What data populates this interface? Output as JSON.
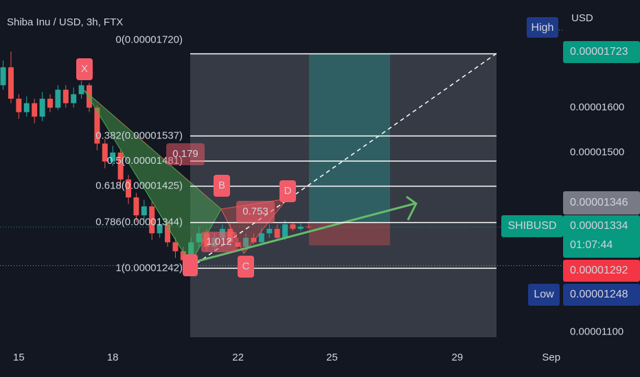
{
  "chart_data": {
    "type": "candlestick",
    "title": "Shiba Inu / USD, 3h, FTX",
    "currency": "USD",
    "x": [
      14.5,
      14.75,
      15,
      15.25,
      15.5,
      15.75,
      16,
      16.25,
      16.5,
      16.75,
      17,
      17.25,
      17.5,
      17.75,
      18,
      18.25,
      18.5,
      18.75,
      19,
      19.25,
      19.5,
      19.75,
      20,
      20.25,
      20.5,
      20.75,
      21,
      21.25,
      21.5,
      21.75,
      22,
      22.25,
      22.5,
      22.75,
      23,
      23.25,
      23.5,
      23.75,
      24,
      24.25
    ],
    "open": [
      1.65e-05,
      1.69e-05,
      1.62e-05,
      1.59e-05,
      1.61e-05,
      1.58e-05,
      1.62e-05,
      1.6e-05,
      1.64e-05,
      1.61e-05,
      1.63e-05,
      1.65e-05,
      1.6e-05,
      1.52e-05,
      1.48e-05,
      1.5e-05,
      1.44e-05,
      1.4e-05,
      1.36e-05,
      1.38e-05,
      1.32e-05,
      1.34e-05,
      1.3e-05,
      1.28e-05,
      1.26e-05,
      1.3e-05,
      1.32e-05,
      1.29e-05,
      1.31e-05,
      1.33e-05,
      1.3e-05,
      1.29e-05,
      1.31e-05,
      1.3e-05,
      1.32e-05,
      1.33e-05,
      1.31e-05,
      1.34e-05,
      1.33e-05,
      1.335e-05
    ],
    "high": [
      1.705e-05,
      1.725e-05,
      1.63e-05,
      1.625e-05,
      1.62e-05,
      1.635e-05,
      1.63e-05,
      1.65e-05,
      1.65e-05,
      1.645e-05,
      1.66e-05,
      1.655e-05,
      1.605e-05,
      1.53e-05,
      1.515e-05,
      1.505e-05,
      1.45e-05,
      1.41e-05,
      1.395e-05,
      1.39e-05,
      1.355e-05,
      1.35e-05,
      1.31e-05,
      1.29e-05,
      1.31e-05,
      1.335e-05,
      1.33e-05,
      1.32e-05,
      1.34e-05,
      1.34e-05,
      1.31e-05,
      1.32e-05,
      1.32e-05,
      1.33e-05,
      1.34e-05,
      1.34e-05,
      1.35e-05,
      1.345e-05,
      1.342e-05,
      1.346e-05
    ],
    "low": [
      1.64e-05,
      1.61e-05,
      1.575e-05,
      1.58e-05,
      1.565e-05,
      1.57e-05,
      1.59e-05,
      1.595e-05,
      1.6e-05,
      1.6e-05,
      1.62e-05,
      1.59e-05,
      1.505e-05,
      1.465e-05,
      1.47e-05,
      1.425e-05,
      1.385e-05,
      1.345e-05,
      1.35e-05,
      1.305e-05,
      1.31e-05,
      1.29e-05,
      1.265e-05,
      1.242e-05,
      1.25e-05,
      1.29e-05,
      1.28e-05,
      1.28e-05,
      1.3e-05,
      1.29e-05,
      1.28e-05,
      1.285e-05,
      1.295e-05,
      1.295e-05,
      1.31e-05,
      1.305e-05,
      1.305e-05,
      1.325e-05,
      1.325e-05,
      1.33e-05
    ],
    "close": [
      1.69e-05,
      1.62e-05,
      1.59e-05,
      1.61e-05,
      1.58e-05,
      1.62e-05,
      1.6e-05,
      1.64e-05,
      1.61e-05,
      1.63e-05,
      1.65e-05,
      1.6e-05,
      1.52e-05,
      1.48e-05,
      1.5e-05,
      1.44e-05,
      1.4e-05,
      1.36e-05,
      1.38e-05,
      1.32e-05,
      1.34e-05,
      1.3e-05,
      1.28e-05,
      1.26e-05,
      1.3e-05,
      1.32e-05,
      1.29e-05,
      1.31e-05,
      1.33e-05,
      1.3e-05,
      1.29e-05,
      1.31e-05,
      1.3e-05,
      1.32e-05,
      1.33e-05,
      1.31e-05,
      1.34e-05,
      1.33e-05,
      1.335e-05,
      1.334e-05
    ],
    "up_color": "#26a69a",
    "down_color": "#ef5350",
    "xlim": [
      14.4,
      32.4
    ],
    "xticks": [
      15,
      18,
      22,
      25,
      29,
      {
        "value": 32,
        "label": "Sep"
      }
    ],
    "ylim": [
      1.07e-05,
      1.84e-05
    ],
    "yticks": [
      {
        "value": 1.1e-05,
        "label": "0.00001100"
      },
      {
        "value": 1.5e-05,
        "label": "0.00001500"
      },
      {
        "value": 1.6e-05,
        "label": "0.00001600"
      }
    ],
    "grid": false,
    "fib_levels": [
      {
        "label": "0(0.00001720)",
        "value": 1.72e-05
      },
      {
        "label": "0.382(0.00001537)",
        "value": 1.537e-05
      },
      {
        "label": "0.5(0.00001481)",
        "value": 1.481e-05
      },
      {
        "label": "0.618(0.00001425)",
        "value": 1.425e-05
      },
      {
        "label": "0.786(0.00001344)",
        "value": 1.344e-05
      },
      {
        "label": "1(0.00001242)",
        "value": 1.242e-05
      }
    ],
    "pattern_labels": [
      "X",
      "B",
      "C",
      "D",
      "0.179",
      "0.753",
      "1.012"
    ],
    "price_tags": {
      "high": "High",
      "high_value": {
        "value": 1.723e-05,
        "label": "0.00001723"
      },
      "prev": {
        "value": 1.346e-05,
        "label": "0.00001346"
      },
      "symbol": "SHIBUSD",
      "last": {
        "value": 1.334e-05,
        "label": "0.00001334"
      },
      "countdown": "01:07:44",
      "stop": {
        "value": 1.292e-05,
        "label": "0.00001292"
      },
      "low": "Low",
      "low_value": {
        "value": 1.248e-05,
        "label": "0.00001248"
      }
    }
  }
}
